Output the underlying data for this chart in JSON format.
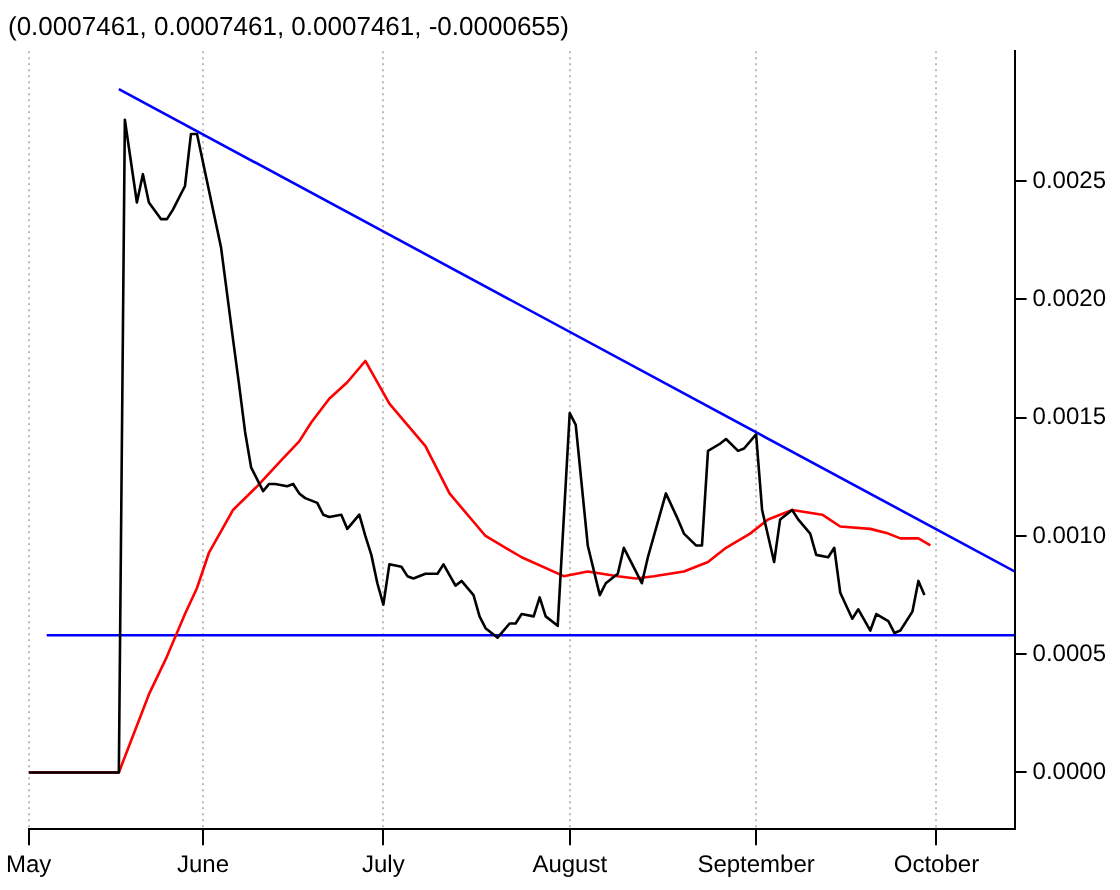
{
  "chart_data": {
    "type": "line",
    "title": "(0.0007461, 0.0007461, 0.0007461, -0.0000655)",
    "xlim": [
      "--05-03",
      "--10-14"
    ],
    "xticks": [
      {
        "value": "--05-03",
        "label": "May"
      },
      {
        "value": "--06-01",
        "label": "June"
      },
      {
        "value": "--07-01",
        "label": "July"
      },
      {
        "value": "--08-01",
        "label": "August"
      },
      {
        "value": "--09-01",
        "label": "September"
      },
      {
        "value": "--10-01",
        "label": "October"
      }
    ],
    "ylim": [
      -0.00024,
      0.00305
    ],
    "yticks": [
      {
        "value": 0,
        "label": "0.0000"
      },
      {
        "value": 0.0005,
        "label": "0.0005"
      },
      {
        "value": 0.001,
        "label": "0.0010"
      },
      {
        "value": 0.0015,
        "label": "0.0015"
      },
      {
        "value": 0.002,
        "label": "0.0020"
      },
      {
        "value": 0.0025,
        "label": "0.0025"
      }
    ],
    "grid": "x",
    "legend": false,
    "marker": "none",
    "series": [
      {
        "color": "#000000",
        "x": [
          "--05-03",
          "--05-18",
          "--05-19",
          "--05-21",
          "--05-22",
          "--05-23",
          "--05-25",
          "--05-26",
          "--05-27",
          "--05-29",
          "--05-30",
          "--05-31",
          "--06-02",
          "--06-04",
          "--06-06",
          "--06-07",
          "--06-08",
          "--06-09",
          "--06-11",
          "--06-12",
          "--06-13",
          "--06-15",
          "--06-16",
          "--06-17",
          "--06-18",
          "--06-20",
          "--06-21",
          "--06-22",
          "--06-24",
          "--06-25",
          "--06-27",
          "--06-28",
          "--06-29",
          "--06-30",
          "--07-01",
          "--07-02",
          "--07-04",
          "--07-05",
          "--07-06",
          "--07-08",
          "--07-10",
          "--07-11",
          "--07-13",
          "--07-14",
          "--07-16",
          "--07-17",
          "--07-18",
          "--07-20",
          "--07-22",
          "--07-23",
          "--07-24",
          "--07-26",
          "--07-27",
          "--07-28",
          "--07-30",
          "--08-01",
          "--08-02",
          "--08-04",
          "--08-06",
          "--08-07",
          "--08-09",
          "--08-10",
          "--08-12",
          "--08-13",
          "--08-14",
          "--08-16",
          "--08-17",
          "--08-19",
          "--08-20",
          "--08-22",
          "--08-23",
          "--08-24",
          "--08-26",
          "--08-27",
          "--08-29",
          "--08-30",
          "--09-01",
          "--09-02",
          "--09-04",
          "--09-05",
          "--09-07",
          "--09-08",
          "--09-10",
          "--09-11",
          "--09-13",
          "--09-14",
          "--09-15",
          "--09-17",
          "--09-18",
          "--09-20",
          "--09-21",
          "--09-23",
          "--09-24",
          "--09-25",
          "--09-27",
          "--09-28",
          "--09-29"
        ],
        "values": [
          0,
          0,
          0.00276,
          0.00241,
          0.00253,
          0.00241,
          0.00234,
          0.00234,
          0.00238,
          0.00248,
          0.0027,
          0.0027,
          0.00246,
          0.00222,
          0.00183,
          0.00164,
          0.00144,
          0.00129,
          0.00119,
          0.00122,
          0.00122,
          0.00121,
          0.00122,
          0.00118,
          0.00116,
          0.00114,
          0.00109,
          0.00108,
          0.00109,
          0.00103,
          0.00109,
          0.001,
          0.00092,
          0.0008,
          0.00071,
          0.00088,
          0.00087,
          0.00083,
          0.00082,
          0.00084,
          0.00084,
          0.00088,
          0.00079,
          0.00081,
          0.00075,
          0.00066,
          0.00061,
          0.00057,
          0.00063,
          0.00063,
          0.00067,
          0.00066,
          0.00074,
          0.00066,
          0.00062,
          0.00152,
          0.00147,
          0.00096,
          0.00075,
          0.0008,
          0.00084,
          0.00095,
          0.00085,
          0.0008,
          0.00091,
          0.00109,
          0.00118,
          0.00107,
          0.00101,
          0.00096,
          0.00096,
          0.00136,
          0.00139,
          0.00141,
          0.00136,
          0.00137,
          0.00143,
          0.00111,
          0.00089,
          0.00107,
          0.00111,
          0.00107,
          0.00101,
          0.00092,
          0.00091,
          0.00095,
          0.00076,
          0.00065,
          0.00069,
          0.0006,
          0.00067,
          0.00064,
          0.00059,
          0.0006,
          0.00068,
          0.00081,
          0.00075
        ]
      },
      {
        "color": "#ff0000",
        "x": [
          "--05-03",
          "--05-18",
          "--05-23",
          "--05-26",
          "--05-29",
          "--05-31",
          "--06-02",
          "--06-06",
          "--06-10",
          "--06-14",
          "--06-17",
          "--06-19",
          "--06-22",
          "--06-25",
          "--06-28",
          "--07-02",
          "--07-08",
          "--07-12",
          "--07-18",
          "--07-24",
          "--07-31",
          "--08-04",
          "--08-09",
          "--08-12",
          "--08-15",
          "--08-20",
          "--08-24",
          "--08-27",
          "--08-31",
          "--09-03",
          "--09-07",
          "--09-12",
          "--09-15",
          "--09-20",
          "--09-23",
          "--09-25",
          "--09-28",
          "--09-30"
        ],
        "values": [
          0,
          0,
          0.00033,
          0.00049,
          0.00067,
          0.00078,
          0.00093,
          0.00111,
          0.00121,
          0.00132,
          0.0014,
          0.00148,
          0.00158,
          0.00165,
          0.00174,
          0.00156,
          0.00138,
          0.00118,
          0.001,
          0.00091,
          0.00083,
          0.00085,
          0.00083,
          0.00082,
          0.00083,
          0.00085,
          0.00089,
          0.00095,
          0.00101,
          0.00107,
          0.00111,
          0.00109,
          0.00104,
          0.00103,
          0.00101,
          0.00099,
          0.00099,
          0.00096
        ]
      },
      {
        "type": "line",
        "color": "#0000ff",
        "x": [
          "--05-18",
          "--10-14"
        ],
        "values": [
          0.00289,
          0.00085
        ]
      },
      {
        "type": "line",
        "color": "#0000ff",
        "x": [
          "--05-06",
          "--10-14"
        ],
        "values": [
          0.00058,
          0.00058
        ]
      }
    ]
  }
}
